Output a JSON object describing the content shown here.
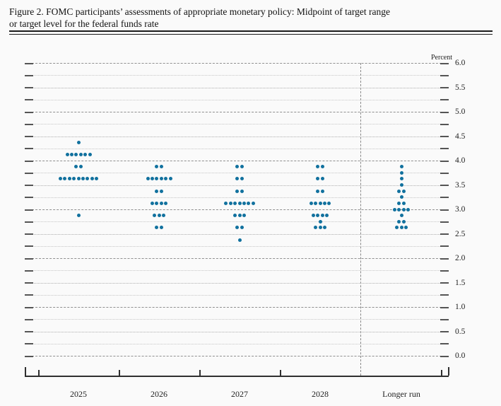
{
  "figure": {
    "title_line1": "Figure 2. FOMC participants’ assessments of appropriate monetary policy: Midpoint of target range",
    "title_line2": "or target level for the federal funds rate"
  },
  "chart_data": {
    "type": "scatter",
    "subtype": "fomc-dot-plot",
    "title": "FOMC participants’ assessments of appropriate monetary policy: Midpoint of target range or target level for the federal funds rate",
    "unit_label": "Percent",
    "xlabel": "",
    "ylabel": "Percent",
    "ylim": [
      0.0,
      6.0
    ],
    "ytick_step": 0.5,
    "gridline_step": 0.25,
    "ytick_labels": [
      "0.0",
      "0.5",
      "1.0",
      "1.5",
      "2.0",
      "2.5",
      "3.0",
      "3.5",
      "4.0",
      "4.5",
      "5.0",
      "5.5",
      "6.0"
    ],
    "categories": [
      "2025",
      "2026",
      "2027",
      "2028",
      "Longer run"
    ],
    "separator_after_category": "2028",
    "grid": true,
    "legend_position": "none",
    "series": [
      {
        "category": "2025",
        "dots": [
          {
            "rate": 4.375,
            "count": 1
          },
          {
            "rate": 4.125,
            "count": 6
          },
          {
            "rate": 3.875,
            "count": 2
          },
          {
            "rate": 3.625,
            "count": 9
          },
          {
            "rate": 2.875,
            "count": 1
          }
        ]
      },
      {
        "category": "2026",
        "dots": [
          {
            "rate": 3.875,
            "count": 2
          },
          {
            "rate": 3.625,
            "count": 6
          },
          {
            "rate": 3.375,
            "count": 2
          },
          {
            "rate": 3.125,
            "count": 4
          },
          {
            "rate": 2.875,
            "count": 3
          },
          {
            "rate": 2.625,
            "count": 2
          }
        ]
      },
      {
        "category": "2027",
        "dots": [
          {
            "rate": 3.875,
            "count": 2
          },
          {
            "rate": 3.625,
            "count": 2
          },
          {
            "rate": 3.375,
            "count": 2
          },
          {
            "rate": 3.125,
            "count": 7
          },
          {
            "rate": 2.875,
            "count": 3
          },
          {
            "rate": 2.625,
            "count": 2
          },
          {
            "rate": 2.375,
            "count": 1
          }
        ]
      },
      {
        "category": "2028",
        "dots": [
          {
            "rate": 3.875,
            "count": 2
          },
          {
            "rate": 3.625,
            "count": 2
          },
          {
            "rate": 3.375,
            "count": 2
          },
          {
            "rate": 3.125,
            "count": 5
          },
          {
            "rate": 2.875,
            "count": 4
          },
          {
            "rate": 2.75,
            "count": 1
          },
          {
            "rate": 2.625,
            "count": 3
          }
        ]
      },
      {
        "category": "Longer run",
        "dots": [
          {
            "rate": 3.875,
            "count": 1
          },
          {
            "rate": 3.75,
            "count": 1
          },
          {
            "rate": 3.625,
            "count": 1
          },
          {
            "rate": 3.5,
            "count": 1
          },
          {
            "rate": 3.375,
            "count": 2
          },
          {
            "rate": 3.25,
            "count": 1
          },
          {
            "rate": 3.125,
            "count": 2
          },
          {
            "rate": 3.0,
            "count": 4
          },
          {
            "rate": 2.875,
            "count": 1
          },
          {
            "rate": 2.75,
            "count": 2
          },
          {
            "rate": 2.625,
            "count": 3
          }
        ]
      }
    ],
    "colors": {
      "dot": "#11719e",
      "grid_whole": "#8f8f8f",
      "grid_half": "#aeaeae",
      "grid_quarter": "#c6c6c6",
      "axis": "#2f2f2f",
      "separator": "#888888"
    }
  }
}
